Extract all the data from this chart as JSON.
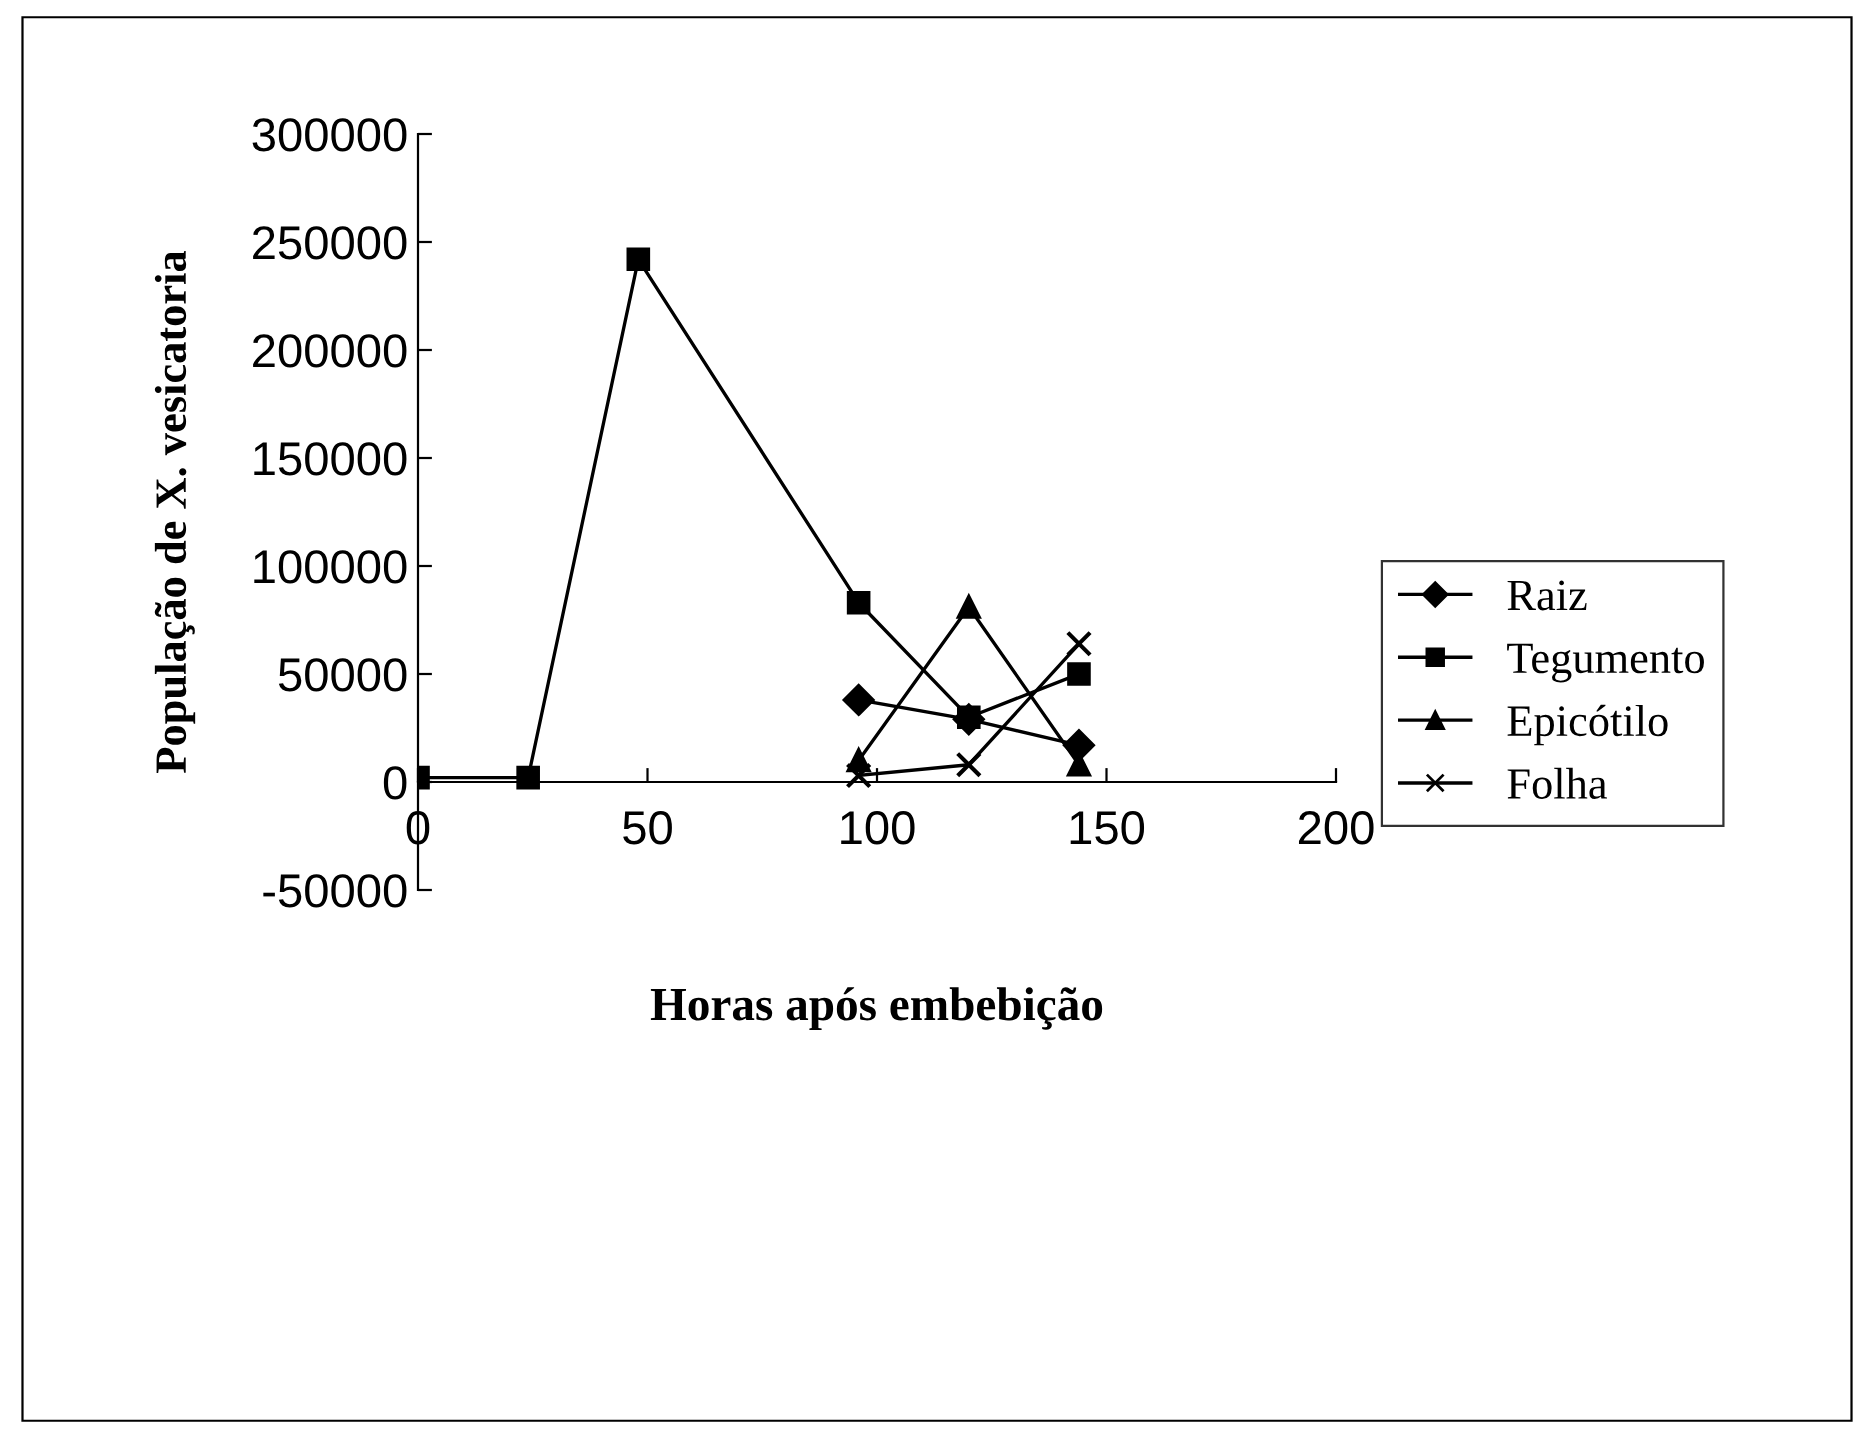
{
  "chart_data": {
    "type": "line",
    "xlabel": "Horas após embebição",
    "ylabel": "População de X. vesicatoria",
    "x": [
      0,
      24,
      48,
      96,
      120,
      144
    ],
    "series": [
      {
        "name": "Raiz",
        "color": "#000000",
        "marker": "diamond",
        "x": [
          96,
          120,
          144
        ],
        "values": [
          38000,
          29000,
          17000
        ]
      },
      {
        "name": "Tegumento",
        "color": "#000000",
        "marker": "square",
        "values": [
          2000,
          2000,
          242000,
          83000,
          30000,
          50000
        ]
      },
      {
        "name": "Epicótilo",
        "color": "#000000",
        "marker": "triangle",
        "x": [
          96,
          120,
          144
        ],
        "values": [
          10000,
          81000,
          8000
        ]
      },
      {
        "name": "Folha",
        "color": "#000000",
        "marker": "cross",
        "x": [
          96,
          120,
          144
        ],
        "values": [
          3000,
          8000,
          64000
        ]
      }
    ],
    "xlim": [
      0,
      200
    ],
    "xticks": [
      0,
      50,
      100,
      150,
      200
    ],
    "ylim": [
      -50000,
      300000
    ],
    "yticks": [
      -50000,
      0,
      50000,
      100000,
      150000,
      200000,
      250000,
      300000
    ],
    "grid": false,
    "legend": "right",
    "line_style": "solid"
  }
}
